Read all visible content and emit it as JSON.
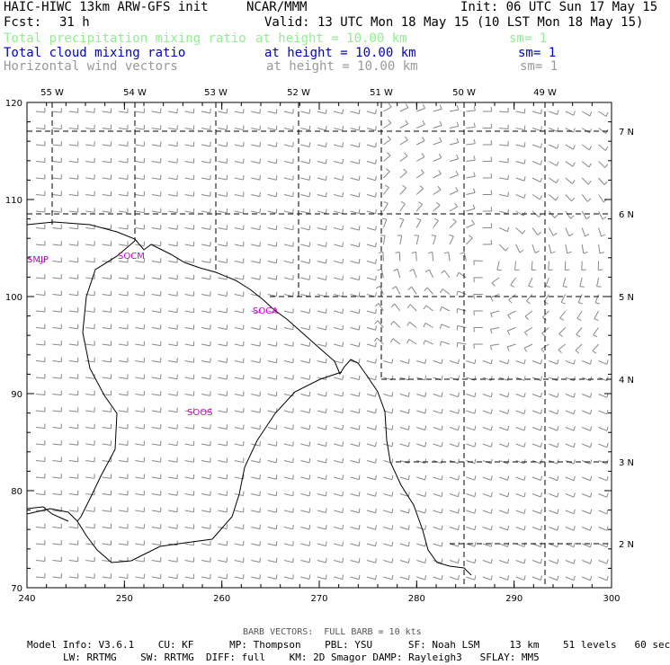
{
  "header": {
    "model": "HAIC-HIWC 13km ARW-GFS init",
    "org": "NCAR/MMM",
    "init": "Init: 06 UTC Sun 17 May 15",
    "fcst_label": "Fcst:",
    "fcst_value": "31 h",
    "valid": "Valid: 13 UTC Mon 18 May 15 (10 LST Mon 18 May 15)"
  },
  "fields": [
    {
      "name": "Total precipitation mixing ratio",
      "level": "at height = 10.00 km",
      "sm": "sm= 1",
      "color": "#90ee90"
    },
    {
      "name": "Total cloud mixing ratio",
      "level": "at height = 10.00 km",
      "sm": "sm= 1",
      "color": "#0000cc"
    },
    {
      "name": "Horizontal wind vectors",
      "level": "at height = 10.00 km",
      "sm": "sm= 1",
      "color": "#999999"
    }
  ],
  "axes": {
    "x_ticks": [
      "240",
      "250",
      "260",
      "270",
      "280",
      "290",
      "300"
    ],
    "y_ticks": [
      "70",
      "80",
      "90",
      "100",
      "110",
      "120"
    ],
    "lon_labels": [
      "55 W",
      "54 W",
      "53 W",
      "52 W",
      "51 W",
      "50 W",
      "49 W"
    ],
    "lat_labels": [
      "7 N",
      "6 N",
      "5 N",
      "4 N",
      "3 N",
      "2 N"
    ]
  },
  "stations": [
    "SMJP",
    "SOCM",
    "SOCA",
    "SOOS"
  ],
  "footer": {
    "barb": "BARB VECTORS:  FULL BARB = 10 kts",
    "line1": "Model Info: V3.6.1    CU: KF      MP: Thompson    PBL: YSU      SF: Noah LSM     13 km    51 levels   60 sec",
    "line2": "LW: RRTMG    SW: RRTMG  DIFF: full    KM: 2D Smagor DAMP: Rayleigh3   SFLAY: MM5"
  }
}
